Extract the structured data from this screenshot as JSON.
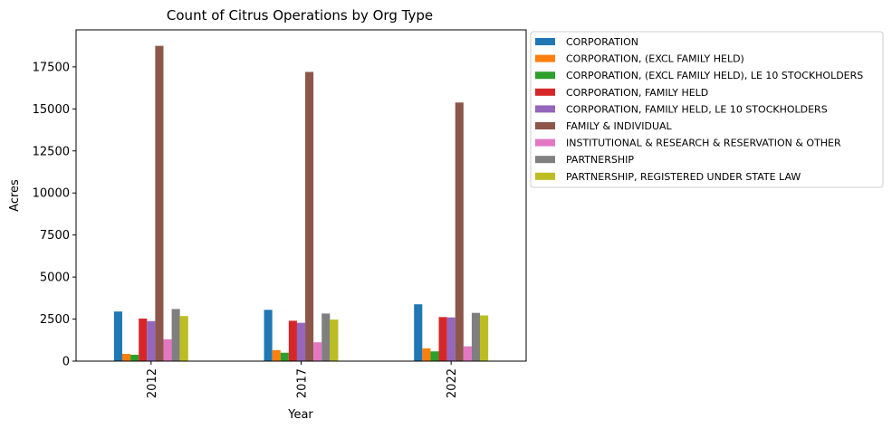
{
  "chart_data": {
    "type": "bar",
    "title": "Count of Citrus Operations by Org Type",
    "xlabel": "Year",
    "ylabel": "Acres",
    "categories": [
      "2012",
      "2017",
      "2022"
    ],
    "ylim": [
      0,
      19700
    ],
    "yticks": [
      0,
      2500,
      5000,
      7500,
      10000,
      12500,
      15000,
      17500
    ],
    "grid": false,
    "legend_position": "outside-right",
    "series": [
      {
        "name": "CORPORATION",
        "color": "#1f77b4",
        "values": [
          2950,
          3050,
          3380
        ]
      },
      {
        "name": "CORPORATION, (EXCL FAMILY HELD)",
        "color": "#ff7f0e",
        "values": [
          430,
          650,
          760
        ]
      },
      {
        "name": "CORPORATION, (EXCL FAMILY HELD), LE 10 STOCKHOLDERS",
        "color": "#2ca02c",
        "values": [
          380,
          500,
          580
        ]
      },
      {
        "name": "CORPORATION, FAMILY HELD",
        "color": "#d62728",
        "values": [
          2530,
          2400,
          2620
        ]
      },
      {
        "name": "CORPORATION, FAMILY HELD, LE 10 STOCKHOLDERS",
        "color": "#9467bd",
        "values": [
          2380,
          2280,
          2600
        ]
      },
      {
        "name": "FAMILY & INDIVIDUAL",
        "color": "#8c564b",
        "values": [
          18750,
          17200,
          15380
        ]
      },
      {
        "name": "INSTITUTIONAL & RESEARCH & RESERVATION & OTHER",
        "color": "#e377c2",
        "values": [
          1300,
          1120,
          880
        ]
      },
      {
        "name": "PARTNERSHIP",
        "color": "#7f7f7f",
        "values": [
          3100,
          2830,
          2870
        ]
      },
      {
        "name": "PARTNERSHIP, REGISTERED UNDER STATE LAW",
        "color": "#bcbd22",
        "values": [
          2680,
          2470,
          2720
        ]
      }
    ]
  }
}
